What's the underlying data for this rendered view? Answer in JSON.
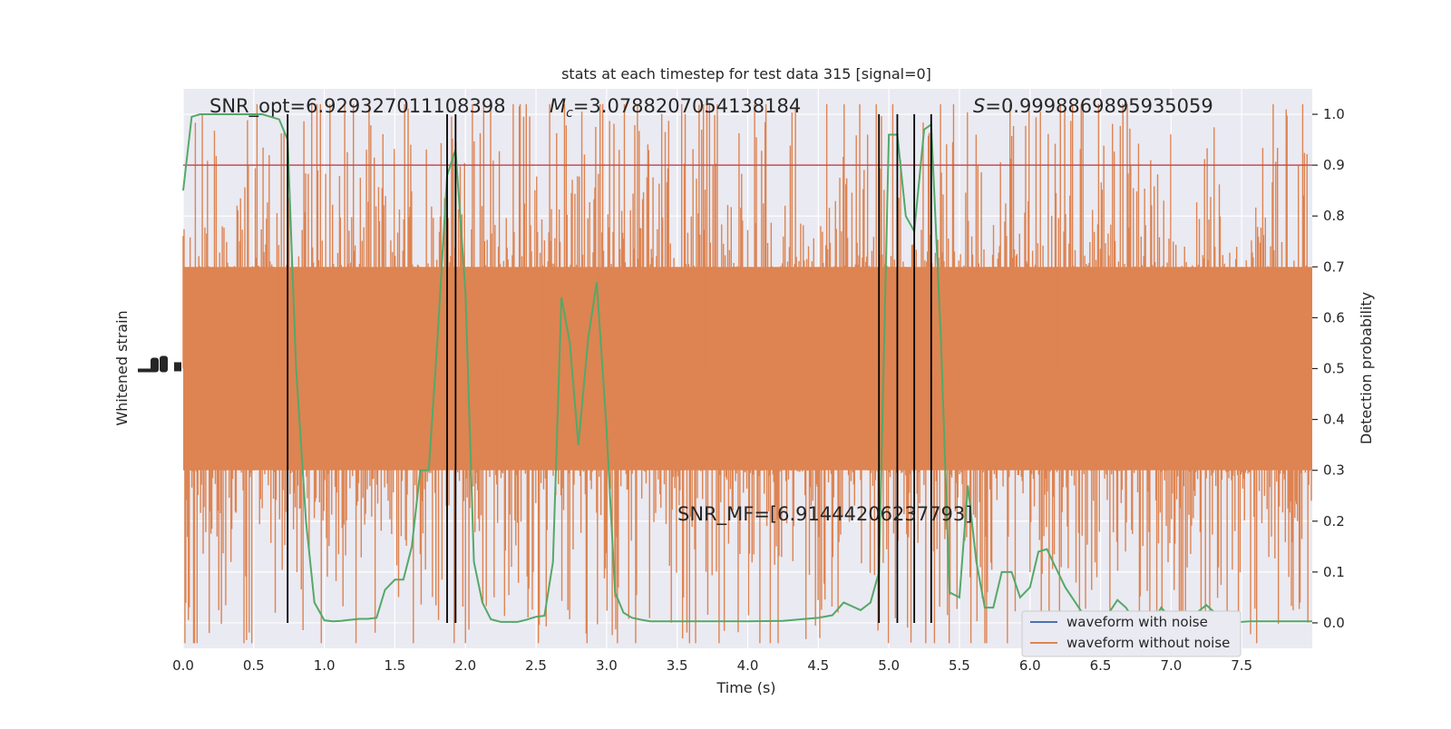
{
  "chart_data": {
    "type": "line",
    "title": "stats at each timestep for test data 315 [signal=0]",
    "xlabel": "Time (s)",
    "ylabel_left": "Whitened strain",
    "ylabel_right": "Detection probability",
    "xlim": [
      0.0,
      8.0
    ],
    "ylim_right": [
      -0.05,
      1.05
    ],
    "x_ticks": [
      0.0,
      0.5,
      1.0,
      1.5,
      2.0,
      2.5,
      3.0,
      3.5,
      4.0,
      4.5,
      5.0,
      5.5,
      6.0,
      6.5,
      7.0,
      7.5
    ],
    "x_tick_labels": [
      "0.0",
      "0.5",
      "1.0",
      "1.5",
      "2.0",
      "2.5",
      "3.0",
      "3.5",
      "4.0",
      "4.5",
      "5.0",
      "5.5",
      "6.0",
      "6.5",
      "7.0",
      "7.5"
    ],
    "y_right_ticks": [
      0.0,
      0.1,
      0.2,
      0.3,
      0.4,
      0.5,
      0.6,
      0.7,
      0.8,
      0.9,
      1.0
    ],
    "y_right_tick_labels": [
      "0.0",
      "0.1",
      "0.2",
      "0.3",
      "0.4",
      "0.5",
      "0.6",
      "0.7",
      "0.8",
      "0.9",
      "1.0"
    ],
    "grid": true,
    "legend_position": "bottom-right",
    "annotations": {
      "snr_opt": "SNR_opt=6.929327011108398",
      "mc_symbol": "M",
      "mc_sub": "c",
      "mc_value": "=3.0788207054138184",
      "s_symbol": "S",
      "s_value": "=0.9998869895935059",
      "snr_mf": "SNR_MF=[6.91444206237793]"
    },
    "threshold": 0.9,
    "vertical_lines": [
      0.74,
      1.87,
      1.93,
      4.93,
      5.06,
      5.18,
      5.3
    ],
    "series": [
      {
        "name": "waveform with noise",
        "color": "#4c72b0",
        "values": []
      },
      {
        "name": "waveform without noise",
        "color": "#dd8452",
        "note_values": "dense whitened-strain noise band, centered at 0.5 on the probability scale",
        "band_center": 0.5,
        "band_typical_extent": [
          0.3,
          0.7
        ]
      },
      {
        "name": "",
        "color": "#55a868",
        "x": [
          0.0,
          0.06,
          0.12,
          0.18,
          0.25,
          0.31,
          0.37,
          0.43,
          0.5,
          0.56,
          0.62,
          0.68,
          0.74,
          0.8,
          0.87,
          0.93,
          1.0,
          1.06,
          1.12,
          1.18,
          1.25,
          1.31,
          1.37,
          1.43,
          1.5,
          1.56,
          1.62,
          1.68,
          1.74,
          1.8,
          1.87,
          1.93,
          2.0,
          2.06,
          2.12,
          2.18,
          2.25,
          2.31,
          2.37,
          2.43,
          2.5,
          2.56,
          2.62,
          2.68,
          2.74,
          2.8,
          2.87,
          2.93,
          3.0,
          3.06,
          3.12,
          3.18,
          3.25,
          3.31,
          3.5,
          4.0,
          4.25,
          4.5,
          4.6,
          4.68,
          4.8,
          4.87,
          4.93,
          5.0,
          5.06,
          5.12,
          5.18,
          5.25,
          5.3,
          5.37,
          5.43,
          5.5,
          5.56,
          5.62,
          5.68,
          5.74,
          5.8,
          5.87,
          5.93,
          6.0,
          6.06,
          6.12,
          6.18,
          6.25,
          6.31,
          6.37,
          6.43,
          6.5,
          6.56,
          6.62,
          6.68,
          6.74,
          6.8,
          6.87,
          6.93,
          7.0,
          7.06,
          7.12,
          7.18,
          7.25,
          7.31,
          7.37,
          7.43,
          7.5,
          7.56,
          7.62,
          7.68,
          8.0
        ],
        "values": [
          0.85,
          0.995,
          1.0,
          1.0,
          1.0,
          1.0,
          1.0,
          1.0,
          1.0,
          1.0,
          0.995,
          0.99,
          0.95,
          0.5,
          0.2,
          0.04,
          0.005,
          0.003,
          0.004,
          0.006,
          0.008,
          0.008,
          0.01,
          0.065,
          0.085,
          0.085,
          0.15,
          0.3,
          0.3,
          0.55,
          0.88,
          0.93,
          0.65,
          0.12,
          0.04,
          0.007,
          0.002,
          0.002,
          0.002,
          0.006,
          0.012,
          0.014,
          0.12,
          0.64,
          0.55,
          0.35,
          0.56,
          0.67,
          0.38,
          0.06,
          0.02,
          0.01,
          0.006,
          0.003,
          0.003,
          0.003,
          0.004,
          0.01,
          0.015,
          0.04,
          0.025,
          0.04,
          0.1,
          0.96,
          0.96,
          0.8,
          0.77,
          0.97,
          0.98,
          0.55,
          0.06,
          0.05,
          0.27,
          0.12,
          0.03,
          0.03,
          0.1,
          0.1,
          0.05,
          0.07,
          0.14,
          0.145,
          0.11,
          0.07,
          0.045,
          0.02,
          0.005,
          0.005,
          0.02,
          0.045,
          0.03,
          0.005,
          0.003,
          0.002,
          0.03,
          0.008,
          0.008,
          0.01,
          0.02,
          0.035,
          0.02,
          0.008,
          0.003,
          0.002,
          0.003,
          0.003,
          0.003,
          0.003
        ]
      }
    ]
  }
}
